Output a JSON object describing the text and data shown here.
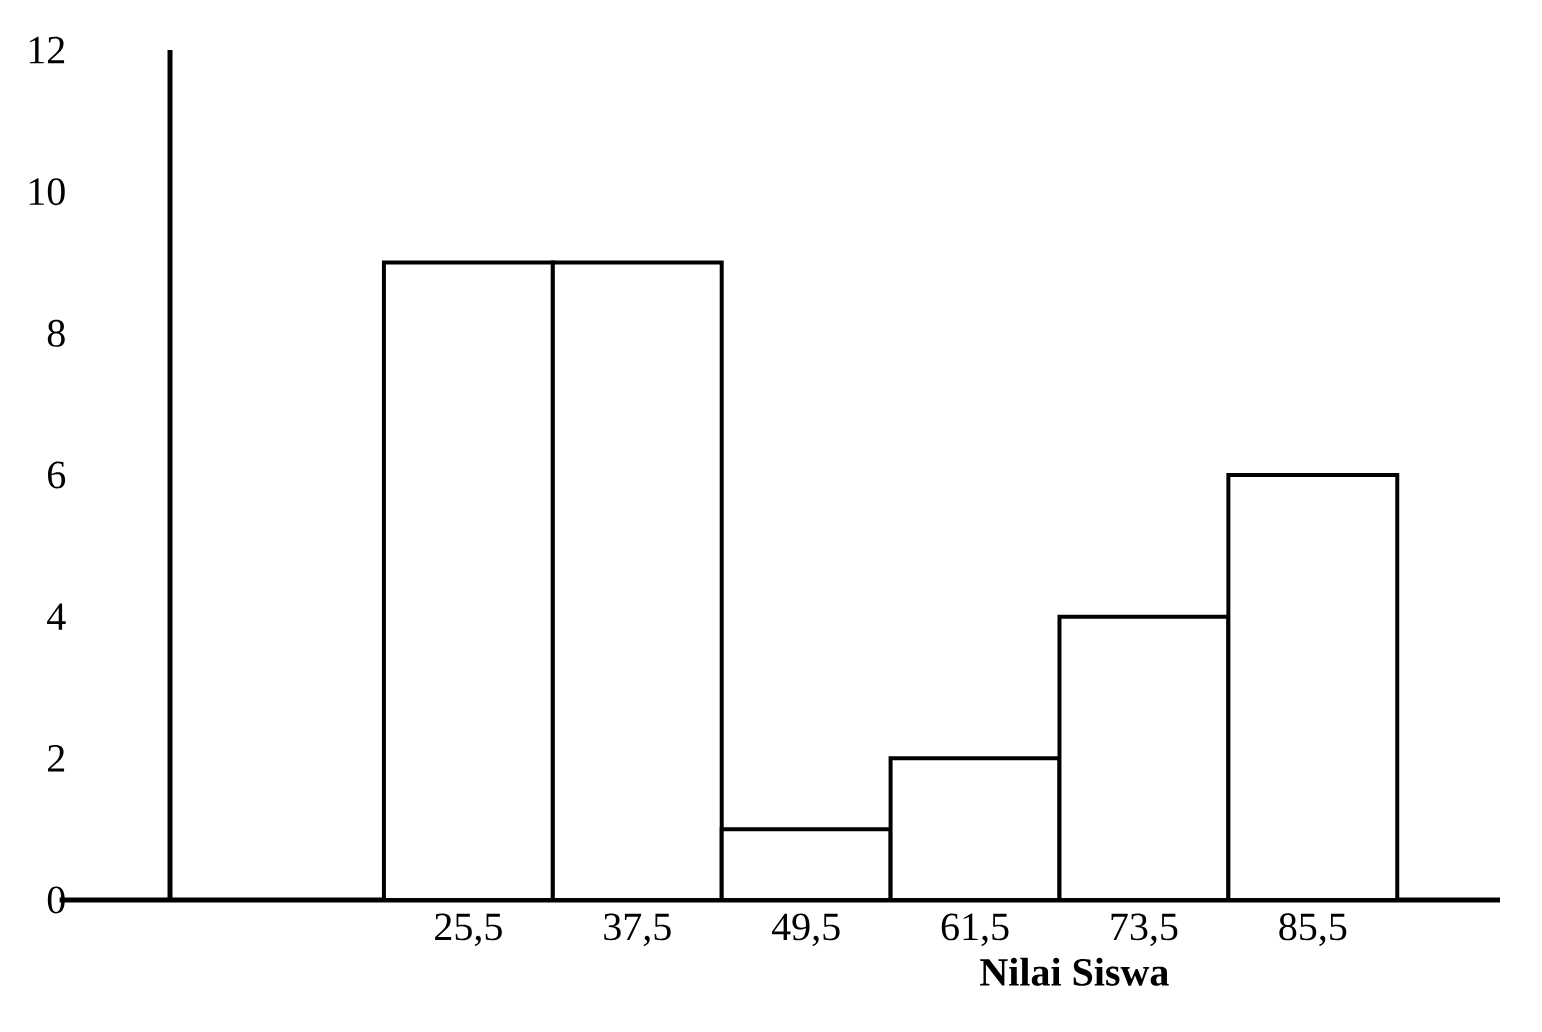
{
  "chart_data": {
    "type": "histogram",
    "xlabel": "**Nilai Siswa**",
    "bins": [
      19.5,
      31.5,
      43.5,
      55.5,
      67.5,
      79.5,
      91.5
    ],
    "values": [
      9,
      9,
      1,
      2,
      4,
      6
    ],
    "color": "#ffffff",
    "xlim": [
      4.3,
      98.8
    ],
    "xticks": [
      {
        "value": 25.5,
        "label": "25,5"
      },
      {
        "value": 37.5,
        "label": "37,5"
      },
      {
        "value": 49.5,
        "label": "49,5"
      },
      {
        "value": 61.5,
        "label": "61,5"
      },
      {
        "value": 73.5,
        "label": "73,5"
      },
      {
        "value": 85.5,
        "label": "85,5"
      }
    ],
    "ylim": [
      0,
      12
    ],
    "yticks": [
      0,
      2,
      4,
      6,
      8,
      10,
      12
    ],
    "grid": false
  }
}
